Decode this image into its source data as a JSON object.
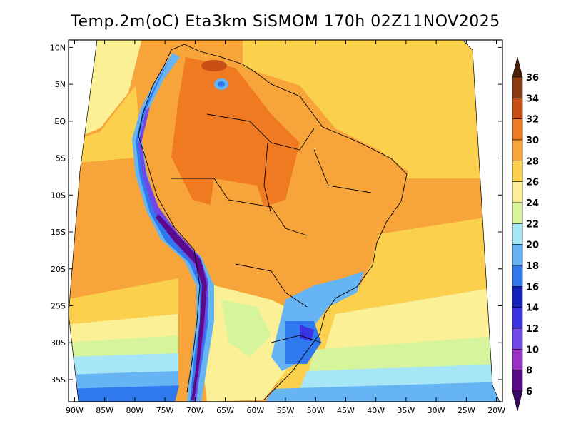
{
  "title": "Temp.2m(oC) Eta3km SiSMOM 170h 02Z11NOV2025",
  "map": {
    "lon_range": [
      -91,
      -19
    ],
    "lat_range": [
      -38,
      11
    ],
    "lon_ticks": [
      {
        "value": -90,
        "label": "90W"
      },
      {
        "value": -85,
        "label": "85W"
      },
      {
        "value": -80,
        "label": "80W"
      },
      {
        "value": -75,
        "label": "75W"
      },
      {
        "value": -70,
        "label": "70W"
      },
      {
        "value": -65,
        "label": "65W"
      },
      {
        "value": -60,
        "label": "60W"
      },
      {
        "value": -55,
        "label": "55W"
      },
      {
        "value": -50,
        "label": "50W"
      },
      {
        "value": -45,
        "label": "45W"
      },
      {
        "value": -40,
        "label": "40W"
      },
      {
        "value": -35,
        "label": "35W"
      },
      {
        "value": -30,
        "label": "30W"
      },
      {
        "value": -25,
        "label": "25W"
      },
      {
        "value": -20,
        "label": "20W"
      }
    ],
    "lat_ticks": [
      {
        "value": 10,
        "label": "10N"
      },
      {
        "value": 5,
        "label": "5N"
      },
      {
        "value": 0,
        "label": "EQ"
      },
      {
        "value": -5,
        "label": "5S"
      },
      {
        "value": -10,
        "label": "10S"
      },
      {
        "value": -15,
        "label": "15S"
      },
      {
        "value": -20,
        "label": "20S"
      },
      {
        "value": -25,
        "label": "25S"
      },
      {
        "value": -30,
        "label": "30S"
      },
      {
        "value": -35,
        "label": "35S"
      }
    ]
  },
  "colorbar": {
    "levels": [
      {
        "label": "36",
        "color": "#6b3410"
      },
      {
        "label": "34",
        "color": "#8a3c12"
      },
      {
        "label": "32",
        "color": "#c84f14"
      },
      {
        "label": "30",
        "color": "#f07a22"
      },
      {
        "label": "28",
        "color": "#f7a53a"
      },
      {
        "label": "26",
        "color": "#fbd04c"
      },
      {
        "label": "24",
        "color": "#fbf096"
      },
      {
        "label": "22",
        "color": "#d6f49c"
      },
      {
        "label": "20",
        "color": "#a6e6f6"
      },
      {
        "label": "18",
        "color": "#66b4f4"
      },
      {
        "label": "16",
        "color": "#2f78ee"
      },
      {
        "label": "14",
        "color": "#1424ba"
      },
      {
        "label": "12",
        "color": "#3a34e4"
      },
      {
        "label": "10",
        "color": "#7048e8"
      },
      {
        "label": "8",
        "color": "#9a32c6"
      },
      {
        "label": "6",
        "color": "#5a0a8a"
      }
    ],
    "top_arrow_color": "#4a2008",
    "bottom_arrow_color": "#3a0a66"
  }
}
